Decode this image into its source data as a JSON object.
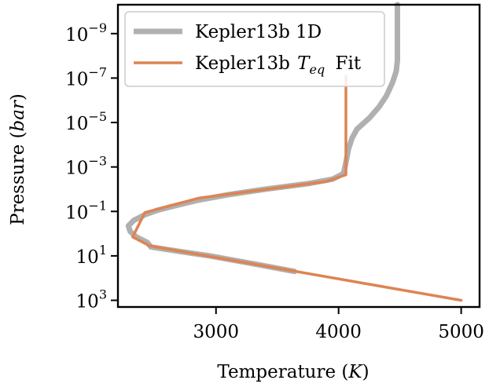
{
  "chart_data": {
    "type": "line",
    "xlabel": "Temperature",
    "xlabel_unit": "K",
    "ylabel": "Pressure",
    "ylabel_unit": "bar",
    "xlim": [
      2200,
      5150
    ],
    "ylim_log10": [
      -10.3,
      3.3
    ],
    "y_inverted": true,
    "y_scale": "log",
    "x_ticks": [
      {
        "value": 3000,
        "label": "3000"
      },
      {
        "value": 4000,
        "label": "4000"
      },
      {
        "value": 5000,
        "label": "5000"
      }
    ],
    "y_ticks": [
      {
        "exp": -9,
        "base": "10",
        "sup": "−9"
      },
      {
        "exp": -7,
        "base": "10",
        "sup": "−7"
      },
      {
        "exp": -5,
        "base": "10",
        "sup": "−5"
      },
      {
        "exp": -3,
        "base": "10",
        "sup": "−3"
      },
      {
        "exp": -1,
        "base": "10",
        "sup": "−1"
      },
      {
        "exp": 1,
        "base": "10",
        "sup": "1"
      },
      {
        "exp": 3,
        "base": "10",
        "sup": "3"
      }
    ],
    "legend_position": "top-left",
    "grid": false,
    "series": [
      {
        "name": "Kepler13b 1D",
        "legend_text": "Kepler13b 1D",
        "color": "#b0b0b0",
        "points": [
          [
            3640,
            1.7
          ],
          [
            3300,
            1.35
          ],
          [
            2950,
            1.0
          ],
          [
            2700,
            0.8
          ],
          [
            2470,
            0.6
          ],
          [
            2440,
            0.4
          ],
          [
            2350,
            0.15
          ],
          [
            2300,
            -0.1
          ],
          [
            2285,
            -0.35
          ],
          [
            2330,
            -0.6
          ],
          [
            2420,
            -0.85
          ],
          [
            2520,
            -1.05
          ],
          [
            2660,
            -1.25
          ],
          [
            2850,
            -1.5
          ],
          [
            3100,
            -1.75
          ],
          [
            3400,
            -2.0
          ],
          [
            3750,
            -2.25
          ],
          [
            3950,
            -2.45
          ],
          [
            4040,
            -2.7
          ],
          [
            4060,
            -3.2
          ],
          [
            4080,
            -3.8
          ],
          [
            4110,
            -4.3
          ],
          [
            4150,
            -4.7
          ],
          [
            4250,
            -5.2
          ],
          [
            4330,
            -5.7
          ],
          [
            4390,
            -6.2
          ],
          [
            4440,
            -6.8
          ],
          [
            4470,
            -7.3
          ],
          [
            4480,
            -7.8
          ],
          [
            4480,
            -10.3
          ]
        ]
      },
      {
        "name": "Kepler13b T_eq Fit",
        "legend_text": "Kepler13b",
        "legend_math_main": "T",
        "legend_math_sub": "eq",
        "legend_suffix": "Fit",
        "color": "#dd8452",
        "points": [
          [
            5000,
            3.0
          ],
          [
            2460,
            0.55
          ],
          [
            2320,
            0.15
          ],
          [
            2420,
            -0.95
          ],
          [
            2860,
            -1.6
          ],
          [
            3900,
            -2.35
          ],
          [
            4060,
            -2.65
          ],
          [
            4060,
            -7.1
          ]
        ]
      }
    ]
  }
}
